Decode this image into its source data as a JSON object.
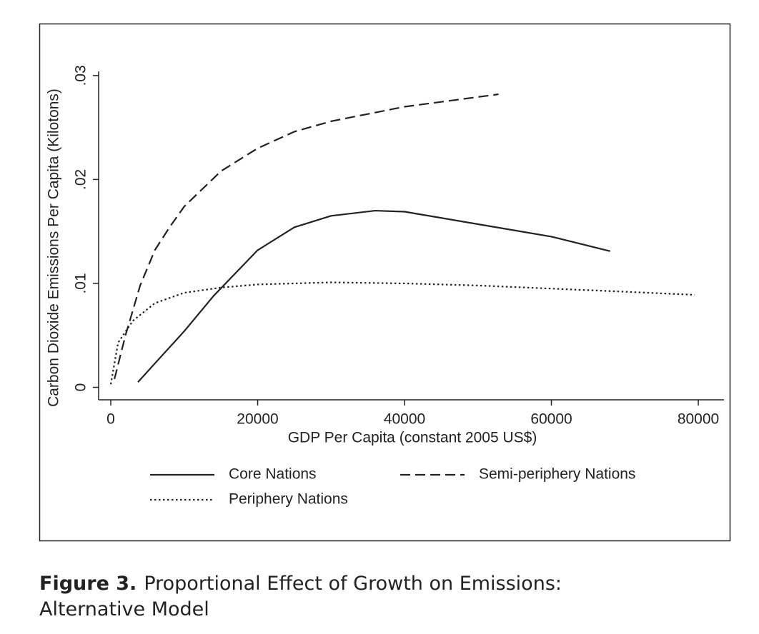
{
  "chart_data": {
    "type": "line",
    "x_label": "GDP Per Capita (constant 2005 US$)",
    "y_label": "Carbon Dioxide Emissions Per Capita (Kilotons)",
    "xlim": [
      -1655,
      83500
    ],
    "ylim": [
      -0.0012,
      0.0304
    ],
    "xticks": [
      0,
      20000,
      40000,
      60000,
      80000
    ],
    "yticks": [
      0,
      {
        "value": 0.01,
        "label": ".01"
      },
      {
        "value": 0.02,
        "label": ".02"
      },
      {
        "value": 0.03,
        "label": ".03"
      }
    ],
    "grid": false,
    "series": [
      {
        "name": "Core Nations",
        "color": "#222222",
        "dash": "solid",
        "x": [
          3700,
          6000,
          10000,
          14000,
          20000,
          25000,
          30000,
          36000,
          40000,
          50000,
          60000,
          68000
        ],
        "values": [
          0.0005,
          0.0023,
          0.0054,
          0.0088,
          0.0132,
          0.0154,
          0.0165,
          0.017,
          0.0169,
          0.0157,
          0.0145,
          0.0131
        ]
      },
      {
        "name": "Semi-periphery Nations",
        "color": "#222222",
        "dash": "dashed",
        "x": [
          500,
          2000,
          4000,
          6000,
          8000,
          10000,
          15000,
          20000,
          25000,
          30000,
          40000,
          52800
        ],
        "values": [
          0.0008,
          0.005,
          0.0098,
          0.0132,
          0.0154,
          0.0174,
          0.0208,
          0.023,
          0.0246,
          0.0256,
          0.027,
          0.0282
        ]
      },
      {
        "name": "Periphery Nations",
        "color": "#222222",
        "dash": "dotted",
        "x": [
          0,
          1000,
          3000,
          6000,
          10000,
          15000,
          20000,
          30000,
          40000,
          50000,
          60000,
          70000,
          79500
        ],
        "values": [
          0.0003,
          0.0043,
          0.0064,
          0.0081,
          0.0091,
          0.0096,
          0.0099,
          0.0101,
          0.01,
          0.0098,
          0.0095,
          0.0092,
          0.0089
        ]
      }
    ]
  },
  "caption": {
    "label": "Figure 3.",
    "text": "Proportional Effect of Growth on Emissions: Alternative Model"
  }
}
